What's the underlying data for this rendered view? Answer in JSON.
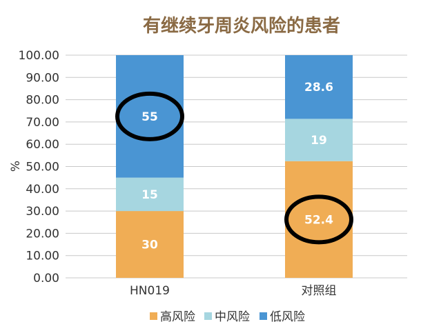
{
  "chart_data": {
    "type": "bar",
    "stacked": true,
    "title": "有继续牙周炎风险的患者",
    "ylabel": "%",
    "xlabel": "",
    "categories": [
      "HN019",
      "对照组"
    ],
    "ylim": [
      0,
      100
    ],
    "yticks": [
      "0.00",
      "10.00",
      "20.00",
      "30.00",
      "40.00",
      "50.00",
      "60.00",
      "70.00",
      "80.00",
      "90.00",
      "100.00"
    ],
    "series": [
      {
        "name": "高风险",
        "values": [
          30,
          52.4
        ],
        "labels": [
          "30",
          "52.4"
        ],
        "color": "#f0ad55"
      },
      {
        "name": "中风险",
        "values": [
          15,
          19
        ],
        "labels": [
          "15",
          "19"
        ],
        "color": "#a6d6e0"
      },
      {
        "name": "低风险",
        "values": [
          55,
          28.6
        ],
        "labels": [
          "55",
          "28.6"
        ],
        "color": "#4a95d3"
      }
    ],
    "highlighted_labels": [
      "55",
      "52.4"
    ],
    "grid": true,
    "legend_position": "bottom"
  }
}
